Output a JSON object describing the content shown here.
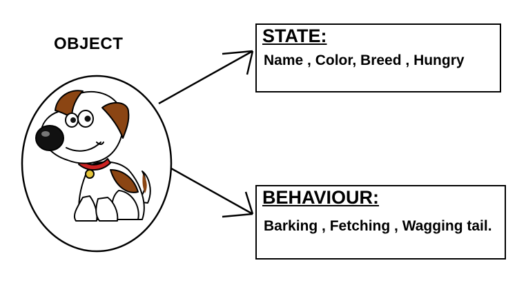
{
  "object": {
    "title": "OBJECT",
    "illustration": "cartoon-dog"
  },
  "state": {
    "heading": "STATE:",
    "text": "Name , Color, Breed , Hungry"
  },
  "behaviour": {
    "heading": "BEHAVIOUR:",
    "text": "Barking , Fetching , Wagging tail."
  },
  "colors": {
    "line": "#000000",
    "background": "#ffffff",
    "dog_patch": "#8b4513",
    "dog_nose": "#111111",
    "collar": "#cc2222",
    "tag": "#e6c63c"
  }
}
